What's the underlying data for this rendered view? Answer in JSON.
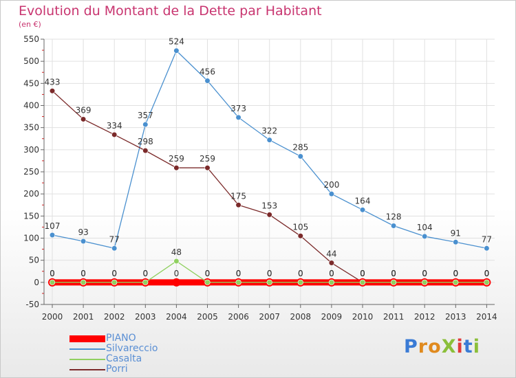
{
  "title": "Evolution du Montant de la Dette par Habitant",
  "subtitle": "(en €)",
  "logo_text": "ProXiti",
  "colors": {
    "axis_text": "#333333",
    "grid": "#e0e0e0",
    "tick_red": "#cc2222"
  },
  "chart_data": {
    "type": "line",
    "title": "Evolution du Montant de la Dette par Habitant",
    "subtitle": "(en €)",
    "x": [
      "2000",
      "2001",
      "2002",
      "2003",
      "2004",
      "2005",
      "2006",
      "2007",
      "2008",
      "2009",
      "2010",
      "2011",
      "2012",
      "2013",
      "2014"
    ],
    "ylim": [
      -50,
      550
    ],
    "yticks": [
      -50,
      0,
      50,
      100,
      150,
      200,
      250,
      300,
      350,
      400,
      450,
      500,
      550
    ],
    "grid": true,
    "legend_position": "bottom-left",
    "series": [
      {
        "name": "PIANO",
        "color": "#ff0000",
        "values": [
          0,
          0,
          0,
          0,
          0,
          0,
          0,
          0,
          0,
          0,
          0,
          0,
          0,
          0,
          0
        ]
      },
      {
        "name": "Silvareccio",
        "color": "#4a90cf",
        "values": [
          107,
          93,
          77,
          357,
          524,
          456,
          373,
          322,
          285,
          200,
          164,
          128,
          104,
          91,
          77
        ]
      },
      {
        "name": "Casalta",
        "color": "#90d060",
        "values": [
          0,
          0,
          0,
          0,
          48,
          0,
          0,
          0,
          0,
          0,
          0,
          0,
          0,
          0,
          0
        ]
      },
      {
        "name": "Porri",
        "color": "#7b2a2a",
        "values": [
          433,
          369,
          334,
          298,
          259,
          259,
          175,
          153,
          105,
          44,
          0,
          0,
          0,
          0,
          0
        ]
      }
    ]
  }
}
